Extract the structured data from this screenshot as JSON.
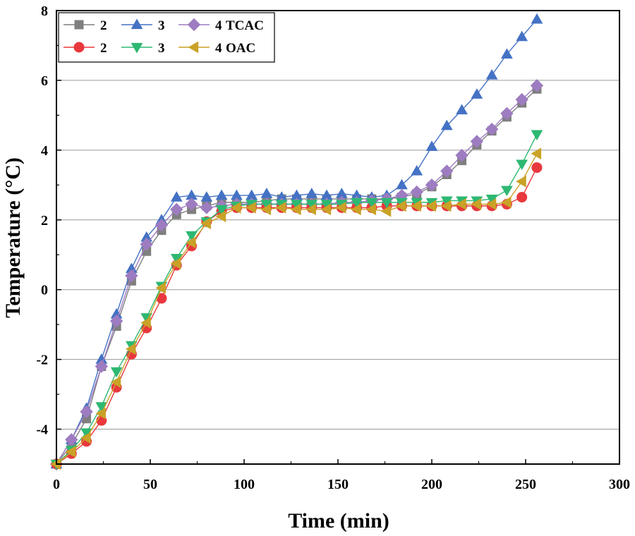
{
  "chart_data": {
    "type": "line",
    "title": "",
    "xlabel": "Time (min)",
    "ylabel": "Temperature (°C)",
    "xlim": [
      0,
      300
    ],
    "ylim": [
      -5,
      8
    ],
    "xticks": [
      "0",
      "50",
      "100",
      "150",
      "200",
      "250",
      "300"
    ],
    "yticks": [
      "-4",
      "-2",
      "0",
      "2",
      "4",
      "6",
      "8"
    ],
    "grid": "horizontal",
    "legend_position": "top-left",
    "legend_groups": [
      "TCAC",
      "OAC"
    ],
    "x": [
      0,
      8,
      16,
      24,
      32,
      40,
      48,
      56,
      64,
      72,
      80,
      88,
      96,
      104,
      112,
      120,
      128,
      136,
      144,
      152,
      160,
      168,
      176,
      184,
      192,
      200,
      208,
      216,
      224,
      232,
      240,
      248,
      256
    ],
    "series": [
      {
        "name": "2",
        "group": "TCAC",
        "color": "#7f7f7f",
        "marker": "square",
        "values": [
          -5.0,
          -4.45,
          -3.7,
          -2.2,
          -1.05,
          0.25,
          1.1,
          1.7,
          2.15,
          2.3,
          2.4,
          2.5,
          2.5,
          2.5,
          2.55,
          2.6,
          2.6,
          2.6,
          2.6,
          2.6,
          2.6,
          2.6,
          2.6,
          2.65,
          2.75,
          2.95,
          3.3,
          3.7,
          4.15,
          4.55,
          4.95,
          5.35,
          5.75
        ]
      },
      {
        "name": "3",
        "group": "TCAC",
        "color": "#4472c4",
        "marker": "triangle-up",
        "values": [
          -5.0,
          -4.3,
          -3.4,
          -2.0,
          -0.7,
          0.6,
          1.5,
          2.0,
          2.65,
          2.7,
          2.65,
          2.7,
          2.7,
          2.7,
          2.75,
          2.65,
          2.7,
          2.75,
          2.7,
          2.75,
          2.7,
          2.65,
          2.7,
          3.0,
          3.4,
          4.1,
          4.7,
          5.15,
          5.6,
          6.15,
          6.75,
          7.25,
          7.75
        ]
      },
      {
        "name": "4",
        "group": "TCAC",
        "color": "#9e7cc1",
        "marker": "diamond",
        "values": [
          -5.0,
          -4.3,
          -3.5,
          -2.2,
          -0.9,
          0.4,
          1.3,
          1.85,
          2.3,
          2.45,
          2.35,
          2.4,
          2.45,
          2.45,
          2.45,
          2.45,
          2.45,
          2.45,
          2.45,
          2.5,
          2.5,
          2.55,
          2.6,
          2.7,
          2.8,
          3.0,
          3.4,
          3.85,
          4.25,
          4.6,
          5.05,
          5.45,
          5.85
        ]
      },
      {
        "name": "2",
        "group": "OAC",
        "color": "#e8383d",
        "marker": "circle",
        "values": [
          -5.0,
          -4.7,
          -4.35,
          -3.75,
          -2.8,
          -1.85,
          -1.1,
          -0.25,
          0.7,
          1.25,
          1.95,
          2.25,
          2.35,
          2.35,
          2.35,
          2.35,
          2.35,
          2.35,
          2.35,
          2.35,
          2.35,
          2.35,
          2.4,
          2.4,
          2.4,
          2.4,
          2.4,
          2.4,
          2.4,
          2.4,
          2.45,
          2.65,
          3.5
        ]
      },
      {
        "name": "3",
        "group": "OAC",
        "color": "#2eb872",
        "marker": "triangle-down",
        "values": [
          -5.0,
          -4.6,
          -4.1,
          -3.35,
          -2.35,
          -1.6,
          -0.8,
          0.1,
          0.9,
          1.55,
          1.95,
          2.3,
          2.4,
          2.45,
          2.45,
          2.45,
          2.45,
          2.45,
          2.45,
          2.45,
          2.5,
          2.5,
          2.5,
          2.5,
          2.5,
          2.5,
          2.55,
          2.55,
          2.55,
          2.6,
          2.85,
          3.6,
          4.45
        ]
      },
      {
        "name": "4",
        "group": "OAC",
        "color": "#c9a227",
        "marker": "triangle-left",
        "values": [
          -5.0,
          -4.65,
          -4.25,
          -3.55,
          -2.65,
          -1.7,
          -0.95,
          0.05,
          0.75,
          1.35,
          1.9,
          2.1,
          2.35,
          2.35,
          2.3,
          2.35,
          2.3,
          2.3,
          2.3,
          2.35,
          2.3,
          2.3,
          2.25,
          2.4,
          2.4,
          2.4,
          2.4,
          2.45,
          2.45,
          2.45,
          2.5,
          3.1,
          3.9
        ]
      }
    ]
  }
}
